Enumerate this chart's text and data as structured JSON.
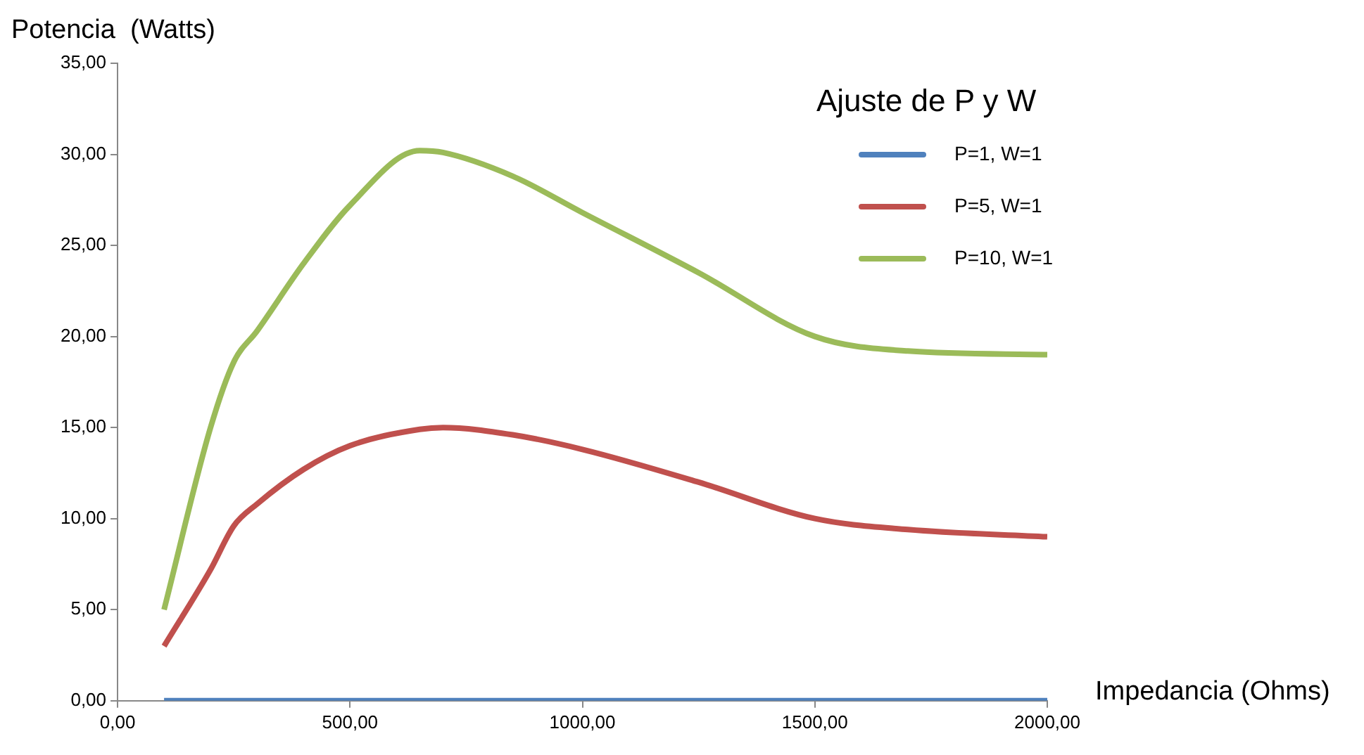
{
  "chart_data": {
    "type": "line",
    "xlabel": "Impedancia (Ohms)",
    "ylabel": "Potencia  (Watts)",
    "legend_title": "Ajuste de P y W",
    "legend": "top right",
    "x": [
      100,
      200,
      250,
      300,
      400,
      500,
      650,
      700,
      850,
      1000,
      1250,
      1500,
      1700,
      2000
    ],
    "series": [
      {
        "name": "P=1, W=1",
        "color": "#4f81bd",
        "values": [
          0,
          0,
          0,
          0,
          0,
          0,
          0,
          0,
          0,
          0,
          0,
          0,
          0,
          0
        ]
      },
      {
        "name": "P=5, W=1",
        "color": "#c0504d",
        "values": [
          3,
          7.2,
          9.6,
          10.8,
          12.7,
          14,
          14.9,
          15,
          14.6,
          13.8,
          12,
          10,
          9.4,
          9
        ]
      },
      {
        "name": "P=10, W=1",
        "color": "#9bbb59",
        "values": [
          5,
          15,
          18.6,
          20.3,
          24,
          27.2,
          30.2,
          30.1,
          28.8,
          26.8,
          23.5,
          20,
          19.2,
          19
        ]
      }
    ],
    "xlim": [
      0,
      2000
    ],
    "xticks": [
      {
        "value": 0,
        "label": "0,00"
      },
      {
        "value": 500,
        "label": "500,00"
      },
      {
        "value": 1000,
        "label": "1000,00"
      },
      {
        "value": 1500,
        "label": "1500,00"
      },
      {
        "value": 2000,
        "label": "2000,00"
      }
    ],
    "ylim": [
      0,
      35
    ],
    "yticks": [
      {
        "value": 0,
        "label": "0,00"
      },
      {
        "value": 5,
        "label": "5,00"
      },
      {
        "value": 10,
        "label": "10,00"
      },
      {
        "value": 15,
        "label": "15,00"
      },
      {
        "value": 20,
        "label": "20,00"
      },
      {
        "value": 25,
        "label": "25,00"
      },
      {
        "value": 30,
        "label": "30,00"
      },
      {
        "value": 35,
        "label": "35,00"
      }
    ]
  }
}
